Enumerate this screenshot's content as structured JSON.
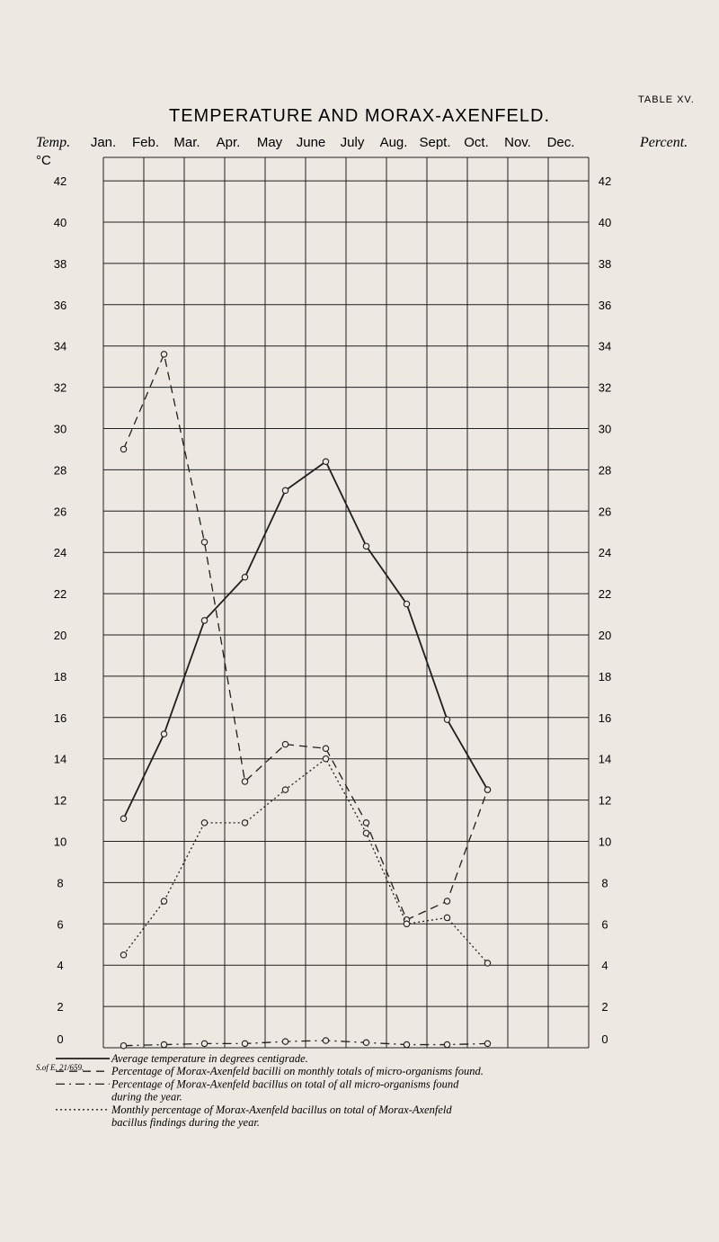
{
  "table_label": "TABLE XV.",
  "title": "TEMPERATURE AND MORAX-AXENFELD.",
  "chart_data": {
    "type": "line",
    "x_axis_label_left": "Temp.",
    "y_axis_label_left": "°C",
    "y_axis_label_right": "Percent.",
    "categories": [
      "Jan.",
      "Feb.",
      "Mar.",
      "Apr.",
      "May",
      "June",
      "July",
      "Aug.",
      "Sept.",
      "Oct.",
      "Nov.",
      "Dec."
    ],
    "y_ticks": [
      0,
      2,
      4,
      6,
      8,
      10,
      12,
      14,
      16,
      18,
      20,
      22,
      24,
      26,
      28,
      30,
      32,
      34,
      36,
      38,
      40,
      42
    ],
    "ylim": [
      0,
      44
    ],
    "grid": true,
    "series": [
      {
        "name": "Average temperature in degrees centigrade.",
        "style": "solid",
        "values": [
          11.1,
          15.2,
          20.7,
          22.8,
          27.0,
          28.4,
          24.3,
          21.5,
          15.9,
          12.5,
          null,
          null
        ]
      },
      {
        "name": "Percentage of Morax-Axenfeld bacilli on monthly totals of micro-organisms found.",
        "style": "dashed",
        "values": [
          29.0,
          33.6,
          24.5,
          12.9,
          14.7,
          14.5,
          10.9,
          6.2,
          7.1,
          12.5,
          null,
          null
        ]
      },
      {
        "name": "Percentage of Morax-Axenfeld bacillus on total of all micro-organisms found during the year.",
        "style": "dash-dot",
        "values": [
          0.1,
          0.15,
          0.2,
          0.2,
          0.3,
          0.35,
          0.25,
          0.15,
          0.15,
          0.2,
          null,
          null
        ]
      },
      {
        "name": "Monthly percentage of Morax-Axenfeld bacillus on total of Morax-Axenfeld bacillus findings during the year.",
        "style": "dotted",
        "values": [
          4.5,
          7.1,
          10.9,
          10.9,
          12.5,
          14.0,
          10.4,
          6.0,
          6.3,
          4.1,
          null,
          null
        ]
      }
    ]
  },
  "legend_items": [
    "Average temperature in degrees centigrade.",
    "Percentage of Morax-Axenfeld bacilli on monthly totals of micro-organisms found.",
    "Percentage of Morax-Axenfeld bacillus on total of all micro-organisms found",
    "during the year.",
    "Monthly percentage of Morax-Axenfeld bacillus on total of Morax-Axenfeld",
    "bacillus findings during the year."
  ],
  "stamp": "S.of E. 21/659."
}
